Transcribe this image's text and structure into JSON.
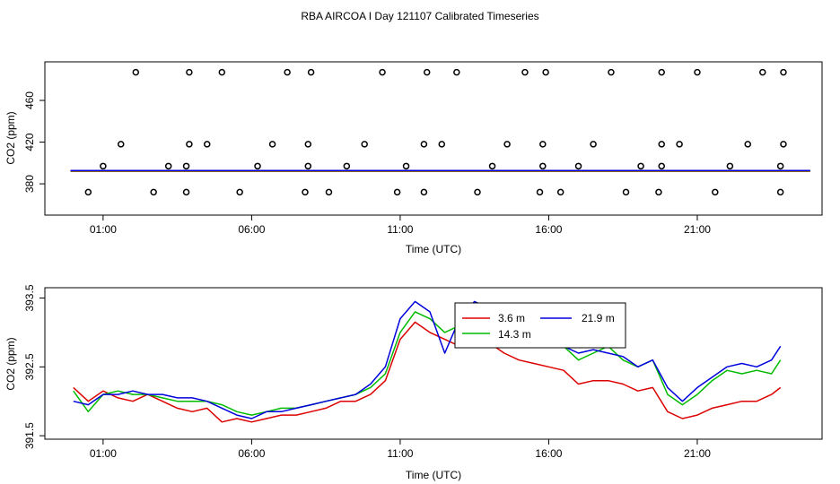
{
  "figure": {
    "title": "RBA AIRCOA I  Day 121107  Calibrated Timeseries"
  },
  "chart_data": [
    {
      "type": "scatter",
      "xlabel": "Time (UTC)",
      "ylabel": "CO2 (ppm)",
      "xlim": [
        -0.96,
        25.2
      ],
      "ylim": [
        350,
        497
      ],
      "x_ticks": [
        1,
        6,
        11,
        16,
        21
      ],
      "x_tick_labels": [
        "01:00",
        "06:00",
        "11:00",
        "16:00",
        "21:00"
      ],
      "y_ticks": [
        380,
        420,
        460
      ],
      "y_tick_labels": [
        "380",
        "420",
        "460"
      ],
      "grid": false,
      "legend": "none",
      "points": {
        "color": "#000000",
        "marker": "open-circle",
        "x": [
          0.5,
          1.0,
          1.6,
          2.1,
          2.7,
          3.2,
          3.8,
          3.8,
          3.9,
          3.9,
          4.5,
          5.0,
          5.6,
          6.2,
          6.7,
          7.2,
          7.8,
          7.9,
          7.9,
          8.0,
          8.6,
          9.2,
          9.8,
          10.4,
          10.9,
          11.2,
          11.8,
          11.8,
          11.9,
          12.4,
          12.9,
          13.6,
          14.1,
          14.6,
          15.2,
          15.7,
          15.8,
          15.8,
          15.9,
          16.4,
          17.0,
          17.5,
          18.1,
          18.6,
          19.1,
          19.7,
          19.8,
          19.8,
          19.8,
          20.4,
          21.0,
          21.6,
          22.1,
          22.7,
          23.2,
          23.8,
          23.8,
          23.9,
          23.9
        ],
        "y": [
          372,
          397,
          418,
          487,
          372,
          397,
          372,
          397,
          418,
          487,
          418,
          487,
          372,
          397,
          418,
          487,
          372,
          397,
          418,
          487,
          372,
          397,
          418,
          487,
          372,
          397,
          372,
          418,
          487,
          418,
          487,
          372,
          397,
          418,
          487,
          372,
          397,
          418,
          487,
          372,
          397,
          418,
          487,
          372,
          397,
          372,
          397,
          418,
          487,
          418,
          487,
          372,
          397,
          418,
          487,
          372,
          397,
          418,
          487
        ]
      },
      "series": [
        {
          "name": "3.6 m",
          "color": "#dd0000",
          "x": [
            -0.1,
            24.8
          ],
          "y": [
            392.0,
            392.0
          ]
        },
        {
          "name": "14.3 m",
          "color": "#00bb00",
          "x": [
            -0.1,
            24.8
          ],
          "y": [
            392.5,
            392.5
          ]
        },
        {
          "name": "21.9 m",
          "color": "#0000dd",
          "x": [
            -0.1,
            24.8
          ],
          "y": [
            392.8,
            392.8
          ]
        }
      ]
    },
    {
      "type": "line",
      "xlabel": "Time (UTC)",
      "ylabel": "CO2 (ppm)",
      "xlim": [
        -0.96,
        25.2
      ],
      "ylim": [
        391.45,
        393.65
      ],
      "x_ticks": [
        1,
        6,
        11,
        16,
        21
      ],
      "x_tick_labels": [
        "01:00",
        "06:00",
        "11:00",
        "16:00",
        "21:00"
      ],
      "y_ticks": [
        391.5,
        392.5,
        393.5
      ],
      "y_tick_labels": [
        "391.5",
        "392.5",
        "393.5"
      ],
      "grid": false,
      "legend": "top-center",
      "series": [
        {
          "name": "3.6 m",
          "color": "#dd0000",
          "x": [
            0.0,
            0.5,
            1.0,
            1.5,
            2.0,
            2.5,
            3.0,
            3.5,
            4.0,
            4.5,
            5.0,
            5.5,
            6.0,
            6.5,
            7.0,
            7.5,
            8.0,
            8.5,
            9.0,
            9.5,
            10.0,
            10.5,
            11.0,
            11.5,
            12.0,
            12.5,
            13.0,
            13.5,
            14.0,
            14.5,
            15.0,
            15.5,
            16.0,
            16.5,
            17.0,
            17.5,
            18.0,
            18.5,
            19.0,
            19.5,
            20.0,
            20.5,
            21.0,
            21.5,
            22.0,
            22.5,
            23.0,
            23.5,
            23.8
          ],
          "y": [
            392.2,
            392.0,
            392.15,
            392.05,
            392.0,
            392.1,
            392.0,
            391.9,
            391.85,
            391.9,
            391.7,
            391.75,
            391.7,
            391.75,
            391.8,
            391.8,
            391.85,
            391.9,
            392.0,
            392.0,
            392.1,
            392.3,
            392.9,
            393.15,
            393.0,
            392.9,
            392.8,
            392.9,
            392.85,
            392.7,
            392.6,
            392.55,
            392.5,
            392.45,
            392.25,
            392.3,
            392.3,
            392.25,
            392.15,
            392.2,
            391.85,
            391.75,
            391.8,
            391.9,
            391.95,
            392.0,
            392.0,
            392.1,
            392.2
          ]
        },
        {
          "name": "14.3 m",
          "color": "#00bb00",
          "x": [
            0.0,
            0.5,
            1.0,
            1.5,
            2.0,
            2.5,
            3.0,
            3.5,
            4.0,
            4.5,
            5.0,
            5.5,
            6.0,
            6.5,
            7.0,
            7.5,
            8.0,
            8.5,
            9.0,
            9.5,
            10.0,
            10.5,
            11.0,
            11.5,
            12.0,
            12.5,
            13.0,
            13.5,
            14.0,
            14.5,
            15.0,
            15.5,
            16.0,
            16.5,
            17.0,
            17.5,
            18.0,
            18.5,
            19.0,
            19.5,
            20.0,
            20.5,
            21.0,
            21.5,
            22.0,
            22.5,
            23.0,
            23.5,
            23.8
          ],
          "y": [
            392.15,
            391.85,
            392.1,
            392.15,
            392.1,
            392.1,
            392.05,
            392.0,
            392.0,
            392.0,
            391.95,
            391.85,
            391.8,
            391.85,
            391.9,
            391.9,
            391.95,
            392.0,
            392.05,
            392.1,
            392.2,
            392.4,
            393.0,
            393.3,
            393.2,
            393.0,
            393.1,
            393.2,
            393.3,
            393.35,
            393.3,
            393.2,
            393.1,
            392.8,
            392.6,
            392.7,
            392.8,
            392.6,
            392.5,
            392.6,
            392.1,
            391.95,
            392.1,
            392.3,
            392.45,
            392.4,
            392.45,
            392.4,
            392.6
          ]
        },
        {
          "name": "21.9 m",
          "color": "#0000dd",
          "x": [
            0.0,
            0.5,
            1.0,
            1.5,
            2.0,
            2.5,
            3.0,
            3.5,
            4.0,
            4.5,
            5.0,
            5.5,
            6.0,
            6.5,
            7.0,
            7.5,
            8.0,
            8.5,
            9.0,
            9.5,
            10.0,
            10.5,
            11.0,
            11.5,
            12.0,
            12.5,
            13.0,
            13.5,
            14.0,
            14.5,
            15.0,
            15.5,
            16.0,
            16.5,
            17.0,
            17.5,
            18.0,
            18.5,
            19.0,
            19.5,
            20.0,
            20.5,
            21.0,
            21.5,
            22.0,
            22.5,
            23.0,
            23.5,
            23.8
          ],
          "y": [
            392.0,
            391.95,
            392.1,
            392.1,
            392.15,
            392.1,
            392.1,
            392.05,
            392.05,
            392.0,
            391.9,
            391.8,
            391.75,
            391.85,
            391.85,
            391.9,
            391.95,
            392.0,
            392.05,
            392.1,
            392.25,
            392.5,
            393.2,
            393.45,
            393.3,
            392.7,
            393.2,
            393.45,
            393.35,
            393.25,
            393.3,
            393.0,
            392.95,
            392.8,
            392.7,
            392.75,
            392.7,
            392.65,
            392.5,
            392.6,
            392.2,
            392.0,
            392.2,
            392.35,
            392.5,
            392.55,
            392.5,
            392.6,
            392.8
          ]
        }
      ]
    }
  ]
}
